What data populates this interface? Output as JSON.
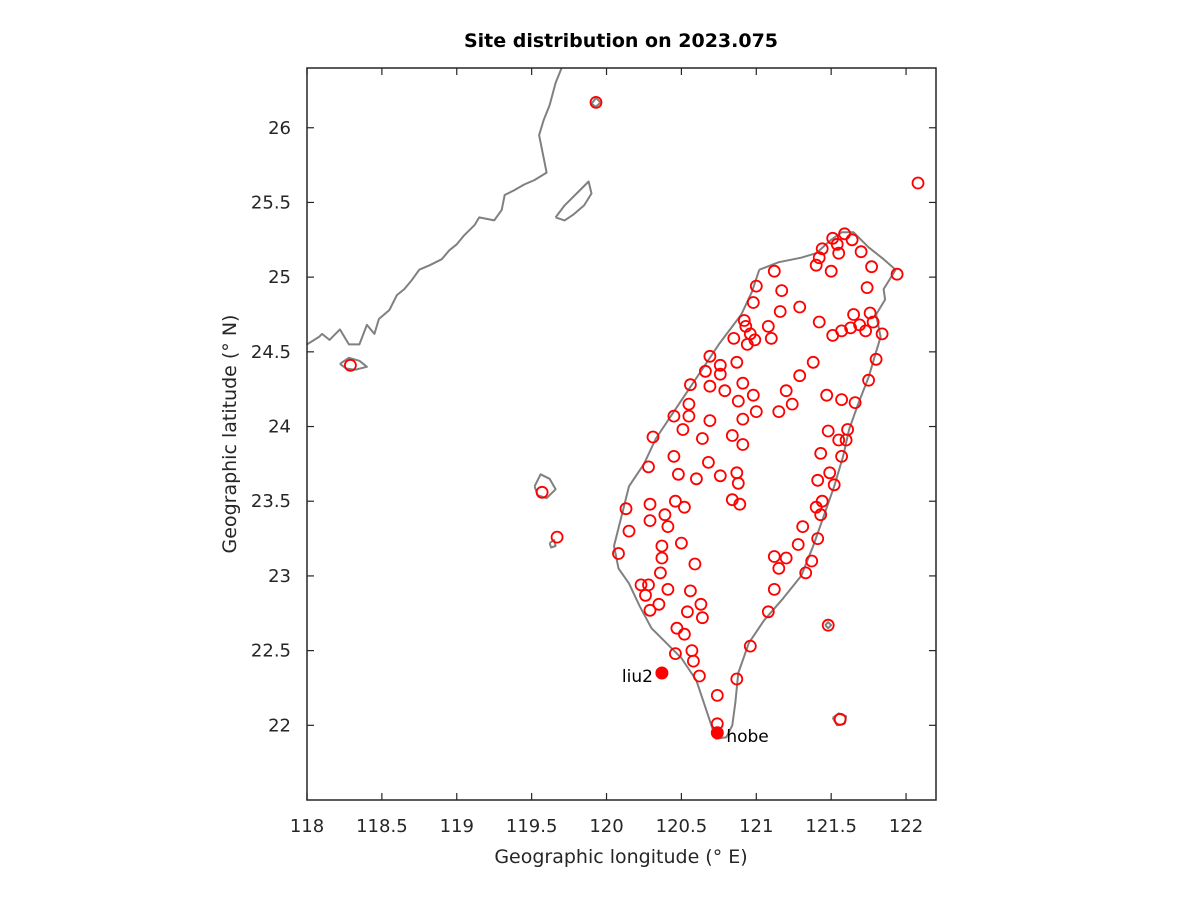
{
  "chart_data": {
    "type": "scatter",
    "title": "Site distribution on 2023.075",
    "xlabel": "Geographic longitude (° E)",
    "ylabel": "Geographic latitude (° N)",
    "xlim": [
      118.0,
      122.2
    ],
    "ylim": [
      21.5,
      26.4
    ],
    "x_ticks": [
      "118",
      "118.5",
      "119",
      "119.5",
      "120",
      "120.5",
      "121",
      "121.5",
      "122"
    ],
    "y_ticks": [
      "22",
      "22.5",
      "23",
      "23.5",
      "24",
      "24.5",
      "25",
      "25.5",
      "26"
    ],
    "grid": false,
    "legend": "none",
    "colors": {
      "sites": "#ff0000",
      "coastline": "#808080",
      "axes": "#262626"
    },
    "series": [
      {
        "marker": "open-circle",
        "points": [
          [
            119.93,
            26.17
          ],
          [
            122.08,
            25.63
          ],
          [
            118.29,
            24.41
          ],
          [
            119.57,
            23.56
          ],
          [
            119.67,
            23.26
          ],
          [
            121.59,
            25.29
          ],
          [
            121.64,
            25.25
          ],
          [
            121.51,
            25.26
          ],
          [
            121.54,
            25.22
          ],
          [
            121.44,
            25.19
          ],
          [
            121.7,
            25.17
          ],
          [
            121.42,
            25.13
          ],
          [
            121.55,
            25.16
          ],
          [
            121.4,
            25.08
          ],
          [
            121.77,
            25.07
          ],
          [
            121.5,
            25.04
          ],
          [
            121.94,
            25.02
          ],
          [
            121.12,
            25.04
          ],
          [
            121.0,
            24.94
          ],
          [
            121.17,
            24.91
          ],
          [
            121.74,
            24.93
          ],
          [
            120.98,
            24.83
          ],
          [
            121.29,
            24.8
          ],
          [
            121.16,
            24.77
          ],
          [
            121.69,
            24.68
          ],
          [
            121.42,
            24.7
          ],
          [
            121.65,
            24.75
          ],
          [
            121.76,
            24.76
          ],
          [
            121.78,
            24.7
          ],
          [
            121.84,
            24.62
          ],
          [
            121.57,
            24.64
          ],
          [
            121.51,
            24.61
          ],
          [
            121.73,
            24.64
          ],
          [
            121.63,
            24.66
          ],
          [
            120.92,
            24.71
          ],
          [
            120.93,
            24.67
          ],
          [
            121.08,
            24.67
          ],
          [
            121.1,
            24.59
          ],
          [
            120.96,
            24.62
          ],
          [
            120.99,
            24.58
          ],
          [
            120.85,
            24.59
          ],
          [
            120.94,
            24.55
          ],
          [
            120.69,
            24.47
          ],
          [
            120.76,
            24.41
          ],
          [
            120.87,
            24.43
          ],
          [
            120.66,
            24.37
          ],
          [
            120.76,
            24.35
          ],
          [
            120.56,
            24.28
          ],
          [
            120.69,
            24.27
          ],
          [
            120.91,
            24.29
          ],
          [
            120.79,
            24.24
          ],
          [
            121.38,
            24.43
          ],
          [
            121.29,
            24.34
          ],
          [
            121.2,
            24.24
          ],
          [
            121.75,
            24.31
          ],
          [
            121.8,
            24.45
          ],
          [
            120.88,
            24.17
          ],
          [
            120.98,
            24.21
          ],
          [
            121.47,
            24.21
          ],
          [
            121.57,
            24.18
          ],
          [
            121.66,
            24.16
          ],
          [
            121.24,
            24.15
          ],
          [
            120.55,
            24.15
          ],
          [
            121.0,
            24.1
          ],
          [
            121.15,
            24.1
          ],
          [
            120.45,
            24.07
          ],
          [
            120.55,
            24.07
          ],
          [
            120.69,
            24.04
          ],
          [
            120.91,
            24.05
          ],
          [
            120.51,
            23.98
          ],
          [
            121.48,
            23.97
          ],
          [
            121.61,
            23.98
          ],
          [
            120.64,
            23.92
          ],
          [
            120.31,
            23.93
          ],
          [
            121.55,
            23.91
          ],
          [
            121.6,
            23.91
          ],
          [
            120.84,
            23.94
          ],
          [
            120.91,
            23.88
          ],
          [
            121.43,
            23.82
          ],
          [
            121.57,
            23.8
          ],
          [
            120.45,
            23.8
          ],
          [
            120.68,
            23.76
          ],
          [
            120.28,
            23.73
          ],
          [
            120.48,
            23.68
          ],
          [
            120.6,
            23.65
          ],
          [
            120.76,
            23.67
          ],
          [
            120.87,
            23.69
          ],
          [
            120.88,
            23.62
          ],
          [
            121.49,
            23.69
          ],
          [
            121.41,
            23.64
          ],
          [
            121.52,
            23.61
          ],
          [
            120.46,
            23.5
          ],
          [
            120.29,
            23.48
          ],
          [
            120.52,
            23.46
          ],
          [
            120.84,
            23.51
          ],
          [
            120.89,
            23.48
          ],
          [
            121.44,
            23.5
          ],
          [
            121.4,
            23.46
          ],
          [
            121.43,
            23.41
          ],
          [
            120.13,
            23.45
          ],
          [
            120.29,
            23.37
          ],
          [
            120.39,
            23.41
          ],
          [
            120.41,
            23.33
          ],
          [
            121.31,
            23.33
          ],
          [
            120.15,
            23.3
          ],
          [
            120.37,
            23.2
          ],
          [
            121.28,
            23.21
          ],
          [
            121.41,
            23.25
          ],
          [
            120.5,
            23.22
          ],
          [
            120.08,
            23.15
          ],
          [
            120.37,
            23.12
          ],
          [
            121.12,
            23.13
          ],
          [
            121.2,
            23.12
          ],
          [
            120.59,
            23.08
          ],
          [
            121.15,
            23.05
          ],
          [
            121.37,
            23.1
          ],
          [
            120.36,
            23.02
          ],
          [
            121.33,
            23.02
          ],
          [
            120.23,
            22.94
          ],
          [
            120.28,
            22.94
          ],
          [
            120.41,
            22.91
          ],
          [
            120.56,
            22.9
          ],
          [
            121.12,
            22.91
          ],
          [
            120.26,
            22.87
          ],
          [
            120.35,
            22.81
          ],
          [
            120.63,
            22.81
          ],
          [
            120.29,
            22.77
          ],
          [
            120.54,
            22.76
          ],
          [
            121.08,
            22.76
          ],
          [
            120.64,
            22.72
          ],
          [
            121.48,
            22.67
          ],
          [
            120.47,
            22.65
          ],
          [
            120.52,
            22.61
          ],
          [
            120.57,
            22.5
          ],
          [
            120.58,
            22.43
          ],
          [
            120.46,
            22.48
          ],
          [
            120.96,
            22.53
          ],
          [
            120.62,
            22.33
          ],
          [
            120.87,
            22.31
          ],
          [
            120.74,
            22.2
          ],
          [
            121.56,
            22.04
          ],
          [
            120.74,
            22.01
          ]
        ]
      },
      {
        "marker": "filled-circle",
        "points": [
          {
            "x": 120.37,
            "y": 22.35,
            "label": "liu2",
            "label_side": "left"
          },
          {
            "x": 120.74,
            "y": 21.95,
            "label": "hobe",
            "label_side": "right"
          }
        ]
      }
    ]
  }
}
